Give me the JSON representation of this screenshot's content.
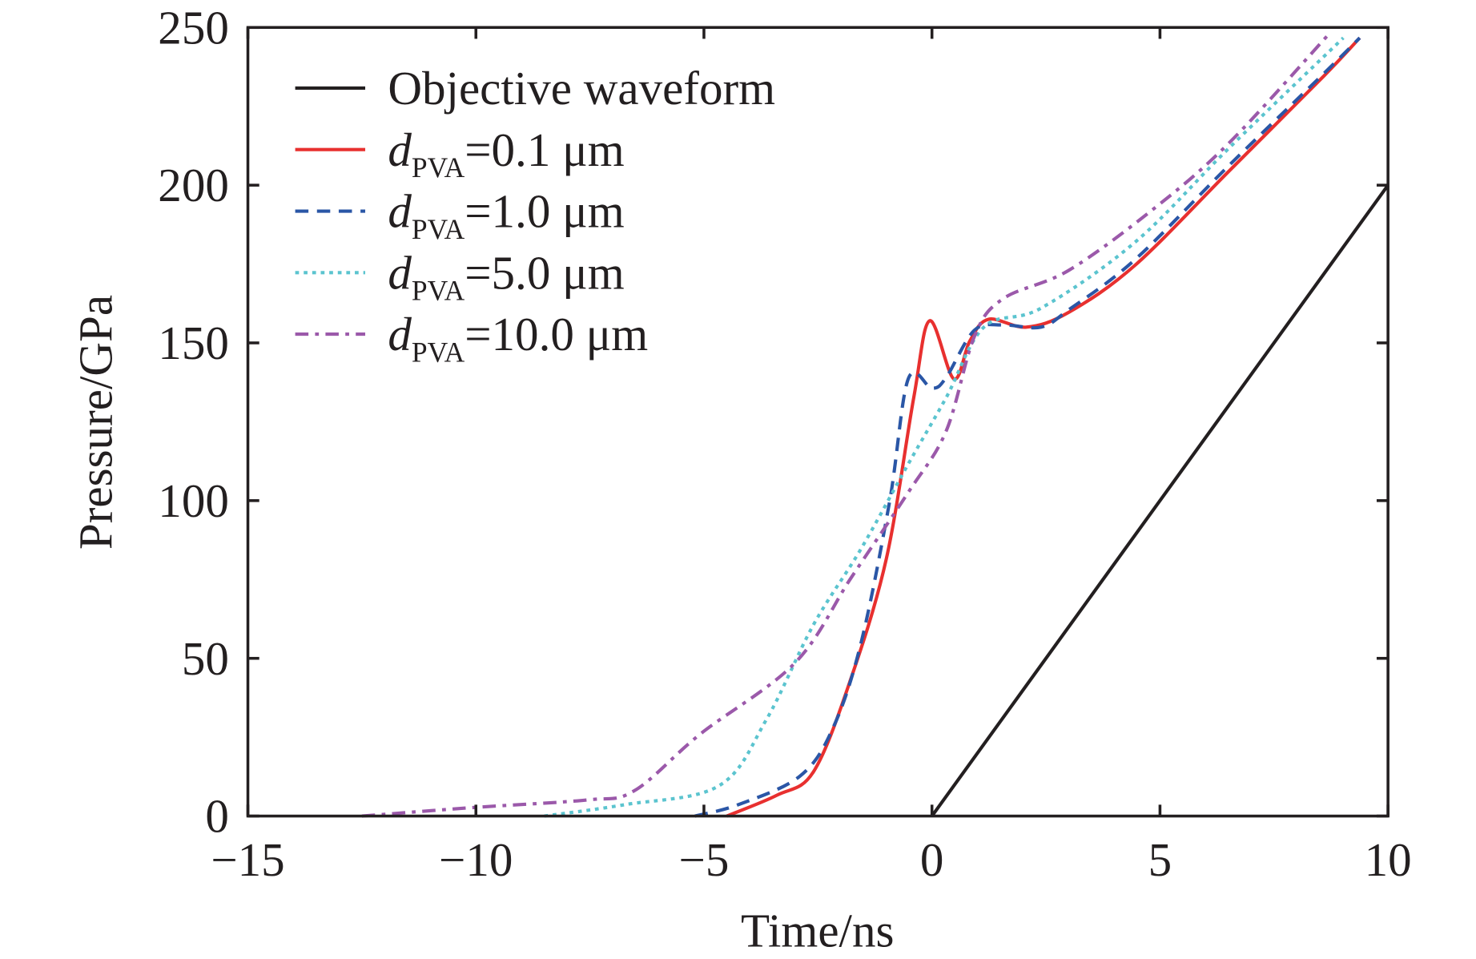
{
  "chart_data": {
    "type": "line",
    "xlabel": "Time/ns",
    "ylabel": "Pressure/GPa",
    "xlim": [
      -15,
      10
    ],
    "ylim": [
      0,
      250
    ],
    "xticks": [
      -15,
      -10,
      -5,
      0,
      5,
      10
    ],
    "xtick_labels": [
      "−15",
      "−10",
      "−5",
      "0",
      "5",
      "10"
    ],
    "yticks": [
      0,
      50,
      100,
      150,
      200,
      250
    ],
    "ytick_labels": [
      "0",
      "50",
      "100",
      "150",
      "200",
      "250"
    ],
    "grid": false,
    "legend_placement": "top-left",
    "series": [
      {
        "name": "Objective waveform",
        "color": "#231f20",
        "style": "solid",
        "x": [
          0,
          10
        ],
        "y": [
          0,
          200
        ]
      },
      {
        "name": "dPVA=0.1 μm",
        "legend": {
          "d": "d",
          "sub": "PVA",
          "rest": "=0.1 μm"
        },
        "color": "#e8302f",
        "style": "solid",
        "x": [
          -4.5,
          -3.4,
          -2.6,
          -1.8,
          -1.0,
          -0.4,
          -0.05,
          0.48,
          0.83,
          1.24,
          2.07,
          3.0,
          4.46,
          6.53,
          8.6,
          9.38
        ],
        "y": [
          0,
          6.6,
          14,
          42.6,
          81.6,
          132.6,
          157,
          138.6,
          150.6,
          157.5,
          155,
          159.7,
          174.7,
          204.7,
          234.7,
          246.7
        ]
      },
      {
        "name": "dPVA=1.0 μm",
        "legend": {
          "d": "d",
          "sub": "PVA",
          "rest": "=1.0 μm"
        },
        "color": "#2a56a6",
        "style": "dashed",
        "x": [
          -5.2,
          -4.25,
          -2.9,
          -2.18,
          -1.56,
          -0.93,
          -0.52,
          0,
          0.31,
          0.93,
          1.56,
          2.39,
          3.0,
          4.46,
          6.53,
          8.6,
          9.38
        ],
        "y": [
          0,
          3.6,
          12.6,
          27.6,
          54.6,
          99.6,
          138.6,
          135.6,
          139,
          154,
          155.7,
          155,
          160.5,
          176.5,
          206.5,
          235.5,
          246.7
        ]
      },
      {
        "name": "dPVA=5.0 μm",
        "legend": {
          "d": "d",
          "sub": "PVA",
          "rest": "=5.0 μm"
        },
        "color": "#5bc4cf",
        "style": "dotted",
        "x": [
          -8.5,
          -6.74,
          -4.67,
          -3.63,
          -2.6,
          -1.56,
          -0.52,
          0.31,
          1.14,
          2.39,
          4.46,
          6.53,
          9.02
        ],
        "y": [
          0,
          3.6,
          9.6,
          30.6,
          60.6,
          84.6,
          111.6,
          132.6,
          155,
          161,
          182,
          212,
          246.7
        ]
      },
      {
        "name": "dPVA=10.0 μm",
        "legend": {
          "d": "d",
          "sub": "PVA",
          "rest": "=10.0 μm"
        },
        "color": "#9b59aa",
        "style": "dashdot",
        "x": [
          -12.5,
          -10.06,
          -7.57,
          -6.53,
          -5.08,
          -3.0,
          -1.77,
          -0.52,
          0.31,
          0.93,
          1.56,
          3.0,
          4.87,
          6.53,
          8.71
        ],
        "y": [
          0,
          2.7,
          5.1,
          8,
          26,
          48.6,
          75.6,
          102.6,
          122,
          152,
          164,
          173,
          192.6,
          213.6,
          248
        ]
      }
    ]
  }
}
